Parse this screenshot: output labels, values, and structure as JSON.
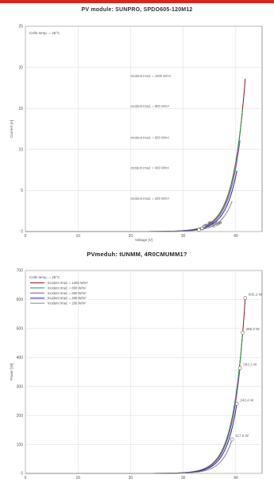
{
  "page": {
    "accent": "#d9261c"
  },
  "chart_data": [
    {
      "type": "line",
      "title": "PV module:  SUNPRO,  SPDO605-120M12",
      "xlabel": "Voltage [V]",
      "ylabel": "Current [A]",
      "xlim": [
        0,
        45
      ],
      "ylim": [
        0,
        25
      ],
      "xticks": [
        "0",
        "10",
        "20",
        "30",
        "40"
      ],
      "yticks": [
        "0",
        "5",
        "10",
        "15",
        "20",
        "25"
      ],
      "grid": true,
      "note": "Cells temp. = 25°C",
      "series": [
        {
          "name": "Incident Irrad. = 1000 W/m²",
          "color": "#8b1a1a",
          "isc": 18.6,
          "voc": 41.8,
          "mpp_x": 34.2,
          "mpp_label": "605.2 W"
        },
        {
          "name": "Incident Irrad. = 800 W/m²",
          "color": "#1e9e4a",
          "isc": 14.9,
          "voc": 41.3,
          "mpp_x": 34.1,
          "mpp_label": "485.2 W"
        },
        {
          "name": "Incident Irrad. = 600 W/m²",
          "color": "#a23aa8",
          "isc": 11.1,
          "voc": 40.8,
          "mpp_x": 33.9,
          "mpp_label": "363.3 W"
        },
        {
          "name": "Incident Irrad. = 400 W/m²",
          "color": "#2222a6",
          "isc": 7.4,
          "voc": 40.2,
          "mpp_x": 33.6,
          "mpp_label": "240.4 W"
        },
        {
          "name": "Incident Irrad. = 200 W/m²",
          "color": "#888888",
          "isc": 3.7,
          "voc": 39.3,
          "mpp_x": 33.0,
          "mpp_label": "117.5 W"
        }
      ]
    },
    {
      "type": "line",
      "title": "PVmeduh: tUNMM, 4R0CMUMM1?",
      "xlabel": "",
      "ylabel": "Power [W]",
      "xlim": [
        0,
        45
      ],
      "ylim": [
        0,
        700
      ],
      "xticks": [
        "0",
        "10",
        "20",
        "30",
        "40"
      ],
      "yticks": [
        "0",
        "100",
        "200",
        "300",
        "400",
        "500",
        "600",
        "700"
      ],
      "grid": true,
      "legend": "top-left",
      "note": "Cells temp. = 25°C",
      "series": [
        {
          "name": "Incident Irrad. = 1000 W/m²",
          "color": "#8b1a1a",
          "pmax": 605.2,
          "mpp_x": 34.2,
          "voc": 41.8,
          "mpp_label": "605.2 W"
        },
        {
          "name": "Incident Irrad. = 800 W/m²",
          "color": "#1e9e4a",
          "pmax": 485.2,
          "mpp_x": 34.1,
          "voc": 41.3,
          "mpp_label": "485.2 W"
        },
        {
          "name": "Incident Irrad. = 600 W/m²",
          "color": "#a23aa8",
          "pmax": 363.3,
          "mpp_x": 33.9,
          "voc": 40.8,
          "mpp_label": "363.3 W"
        },
        {
          "name": "Incident Irrad. = 400 W/m²",
          "color": "#2222a6",
          "pmax": 240.4,
          "mpp_x": 33.6,
          "voc": 40.2,
          "mpp_label": "240.4 W"
        },
        {
          "name": "Incident Irrad. = 200 W/m²",
          "color": "#888888",
          "pmax": 117.5,
          "mpp_x": 33.0,
          "voc": 39.3,
          "mpp_label": "117.5 W"
        }
      ]
    }
  ]
}
